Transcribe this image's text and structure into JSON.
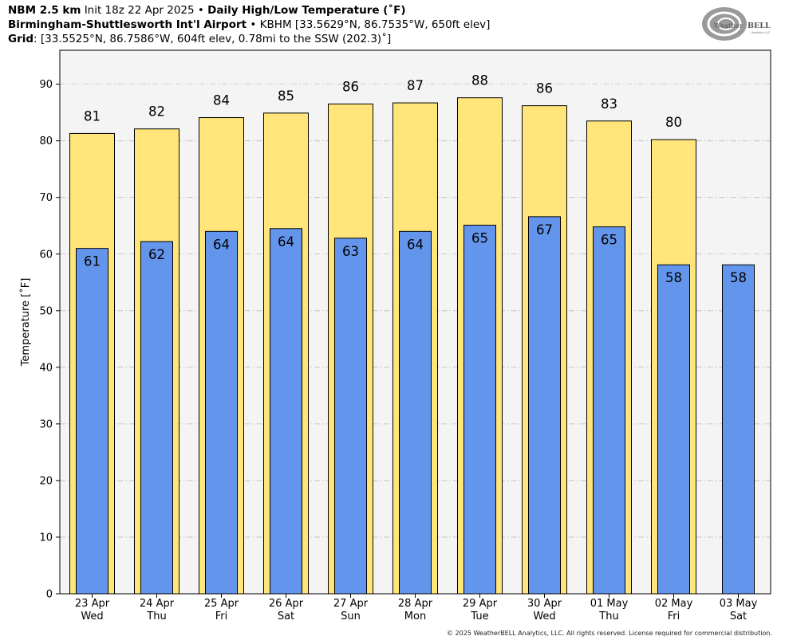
{
  "header": {
    "model": "NBM 2.5 km",
    "init": "Init 18z 22 Apr 2025",
    "bullet": "•",
    "product": "Daily High/Low Temperature (˚F)",
    "station_name": "Birmingham-Shuttlesworth Int'l Airport",
    "station_info": "KBHM [33.5629°N, 86.7535°W, 650ft elev]",
    "grid_label": "Grid",
    "grid_info": ": [33.5525°N, 86.7586°W, 604ft elev, 0.78mi to the SSW (202.3)˚]"
  },
  "logo": {
    "text_a": "Weather",
    "text_b": "BELL",
    "sub": "Analytics LLC"
  },
  "footer": "© 2025 WeatherBELL Analytics, LLC. All rights reserved. License required for commercial distribution.",
  "colors": {
    "high": "#ffe57a",
    "low": "#6495ed",
    "plot_bg": "#f4f4f4",
    "grid": "#bbbbbb"
  },
  "chart_data": {
    "type": "bar",
    "ylabel": "Temperature [˚F]",
    "ylim": [
      0,
      96
    ],
    "yticks": [
      0,
      10,
      20,
      30,
      40,
      50,
      60,
      70,
      80,
      90
    ],
    "grid": true,
    "categories": [
      [
        "23 Apr",
        "Wed"
      ],
      [
        "24 Apr",
        "Thu"
      ],
      [
        "25 Apr",
        "Fri"
      ],
      [
        "26 Apr",
        "Sat"
      ],
      [
        "27 Apr",
        "Sun"
      ],
      [
        "28 Apr",
        "Mon"
      ],
      [
        "29 Apr",
        "Tue"
      ],
      [
        "30 Apr",
        "Wed"
      ],
      [
        "01 May",
        "Thu"
      ],
      [
        "02 May",
        "Fri"
      ],
      [
        "03 May",
        "Sat"
      ]
    ],
    "series": [
      {
        "name": "High",
        "values": [
          81.3,
          82.1,
          84.1,
          84.9,
          86.5,
          86.7,
          87.6,
          86.2,
          83.5,
          80.2,
          null
        ],
        "labels": [
          "81",
          "82",
          "84",
          "85",
          "86",
          "87",
          "88",
          "86",
          "83",
          "80",
          null
        ]
      },
      {
        "name": "Low",
        "values": [
          61.0,
          62.2,
          64.0,
          64.5,
          62.8,
          64.0,
          65.1,
          66.6,
          64.8,
          58.1,
          58.1
        ],
        "labels": [
          "61",
          "62",
          "64",
          "64",
          "63",
          "64",
          "65",
          "67",
          "65",
          "58",
          "58"
        ]
      }
    ]
  }
}
